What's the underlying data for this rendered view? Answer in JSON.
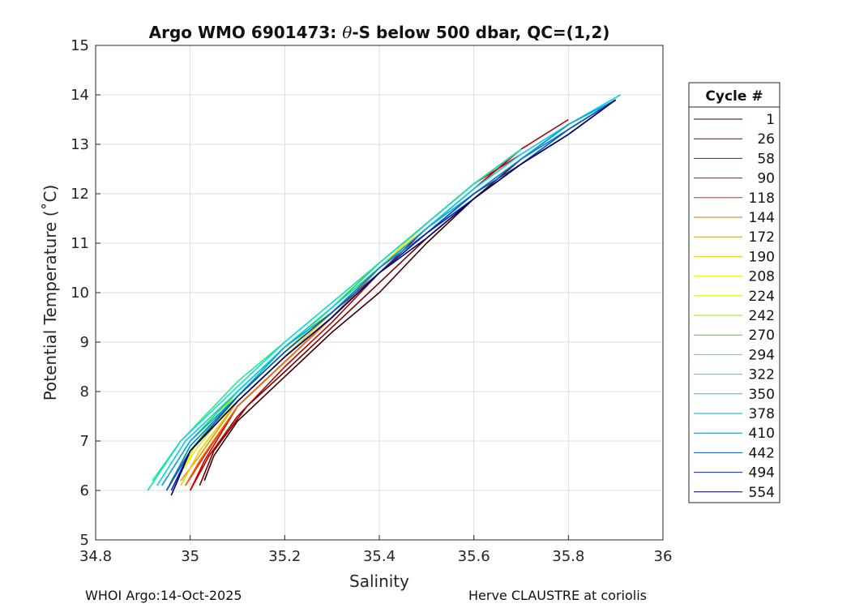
{
  "chart_data": {
    "type": "line",
    "title": "Argo WMO 6901473: θ-S below 500 dbar,  QC=(1,2)",
    "title_parts": [
      "Argo WMO 6901473: ",
      "θ",
      "-S below 500 dbar,  QC=(1,2)"
    ],
    "xlabel": "Salinity",
    "ylabel": "Potential Temperature (˚C)",
    "xlim": [
      34.8,
      36
    ],
    "ylim": [
      5,
      15
    ],
    "xticks": [
      "34.8",
      "35",
      "35.2",
      "35.4",
      "35.6",
      "35.8",
      "36"
    ],
    "yticks": [
      "5",
      "6",
      "7",
      "8",
      "9",
      "10",
      "11",
      "12",
      "13",
      "14",
      "15"
    ],
    "grid": true,
    "legend_position": "right",
    "legend_title": "Cycle #",
    "series": [
      {
        "name": "1",
        "color": "#3d0000",
        "x": [
          35.03,
          35.05,
          35.1,
          35.2,
          35.3,
          35.4,
          35.5,
          35.6,
          35.7,
          35.8
        ],
        "y": [
          6.2,
          6.7,
          7.4,
          8.3,
          9.2,
          10.0,
          11.0,
          11.9,
          12.7,
          13.4
        ]
      },
      {
        "name": "26",
        "color": "#7a0000",
        "x": [
          35.02,
          35.05,
          35.12,
          35.2,
          35.3,
          35.4,
          35.5,
          35.6,
          35.7,
          35.8
        ],
        "y": [
          6.1,
          6.8,
          7.7,
          8.4,
          9.3,
          10.2,
          11.1,
          11.9,
          12.7,
          13.4
        ]
      },
      {
        "name": "58",
        "color": "#b20000",
        "x": [
          35.0,
          35.04,
          35.1,
          35.2,
          35.3,
          35.4,
          35.5,
          35.6,
          35.7,
          35.8
        ],
        "y": [
          6.0,
          6.7,
          7.5,
          8.5,
          9.4,
          10.4,
          11.3,
          12.1,
          12.9,
          13.5
        ]
      },
      {
        "name": "90",
        "color": "#d60000",
        "x": [
          35.0,
          35.03,
          35.1,
          35.2,
          35.3,
          35.4,
          35.5,
          35.6,
          35.7
        ],
        "y": [
          6.0,
          6.6,
          7.7,
          8.6,
          9.5,
          10.5,
          11.4,
          12.2,
          12.8
        ]
      },
      {
        "name": "118",
        "color": "#ee2200",
        "x": [
          34.99,
          35.03,
          35.1,
          35.2,
          35.3,
          35.4,
          35.5,
          35.6,
          35.7
        ],
        "y": [
          6.1,
          6.7,
          7.7,
          8.6,
          9.5,
          10.5,
          11.4,
          12.2,
          12.9
        ]
      },
      {
        "name": "144",
        "color": "#ee6600",
        "x": [
          34.99,
          35.02,
          35.1,
          35.2,
          35.3,
          35.4,
          35.5,
          35.6,
          35.7
        ],
        "y": [
          6.1,
          6.6,
          7.7,
          8.6,
          9.5,
          10.5,
          11.4,
          12.2,
          12.9
        ]
      },
      {
        "name": "172",
        "color": "#dd9900",
        "x": [
          34.98,
          35.02,
          35.1,
          35.2,
          35.3,
          35.4,
          35.5,
          35.6,
          35.7
        ],
        "y": [
          6.2,
          6.7,
          7.8,
          8.7,
          9.6,
          10.5,
          11.4,
          12.2,
          12.9
        ]
      },
      {
        "name": "190",
        "color": "#eecc00",
        "x": [
          34.98,
          35.02,
          35.1,
          35.2,
          35.3,
          35.4,
          35.5,
          35.6,
          35.7
        ],
        "y": [
          6.1,
          6.8,
          7.8,
          8.7,
          9.6,
          10.5,
          11.4,
          12.2,
          12.9
        ]
      },
      {
        "name": "208",
        "color": "#eeee00",
        "x": [
          34.97,
          35.01,
          35.1,
          35.2,
          35.3,
          35.4,
          35.5,
          35.6,
          35.7
        ],
        "y": [
          6.2,
          6.8,
          7.9,
          8.8,
          9.6,
          10.5,
          11.4,
          12.2,
          12.9
        ]
      },
      {
        "name": "224",
        "color": "#ccee00",
        "x": [
          34.97,
          35.01,
          35.1,
          35.2,
          35.3,
          35.4,
          35.5,
          35.6,
          35.7
        ],
        "y": [
          6.2,
          6.9,
          7.9,
          8.8,
          9.7,
          10.6,
          11.4,
          12.2,
          12.9
        ]
      },
      {
        "name": "242",
        "color": "#88ee00",
        "x": [
          34.96,
          35.0,
          35.1,
          35.2,
          35.3,
          35.4,
          35.5,
          35.6,
          35.7
        ],
        "y": [
          6.2,
          6.8,
          8.0,
          8.9,
          9.7,
          10.6,
          11.4,
          12.2,
          12.9
        ]
      },
      {
        "name": "270",
        "color": "#33dd22",
        "x": [
          34.94,
          35.0,
          35.1,
          35.2,
          35.3,
          35.4,
          35.5,
          35.6,
          35.7
        ],
        "y": [
          6.1,
          7.0,
          8.0,
          8.9,
          9.7,
          10.6,
          11.4,
          12.2,
          12.9
        ]
      },
      {
        "name": "294",
        "color": "#22ee88",
        "x": [
          34.92,
          34.98,
          35.1,
          35.2,
          35.3,
          35.4,
          35.5,
          35.6,
          35.7
        ],
        "y": [
          6.2,
          7.0,
          8.2,
          9.0,
          9.8,
          10.6,
          11.4,
          12.2,
          12.9
        ]
      },
      {
        "name": "322",
        "color": "#11ddcc",
        "x": [
          34.91,
          34.98,
          35.1,
          35.2,
          35.3,
          35.4,
          35.5,
          35.6,
          35.7
        ],
        "y": [
          6.0,
          7.0,
          8.1,
          9.0,
          9.8,
          10.6,
          11.4,
          12.2,
          12.9
        ]
      },
      {
        "name": "350",
        "color": "#00ccee",
        "x": [
          34.93,
          34.99,
          35.1,
          35.2,
          35.3,
          35.4,
          35.5,
          35.6,
          35.7,
          35.8,
          35.91
        ],
        "y": [
          6.1,
          7.0,
          8.0,
          8.9,
          9.7,
          10.5,
          11.3,
          12.1,
          12.8,
          13.4,
          14.0
        ]
      },
      {
        "name": "378",
        "color": "#00aadd",
        "x": [
          34.94,
          35.0,
          35.1,
          35.2,
          35.3,
          35.4,
          35.5,
          35.6,
          35.7,
          35.8,
          35.9
        ],
        "y": [
          6.1,
          7.0,
          7.9,
          8.9,
          9.6,
          10.5,
          11.3,
          12.0,
          12.7,
          13.4,
          13.9
        ]
      },
      {
        "name": "410",
        "color": "#0088cc",
        "x": [
          34.95,
          35.0,
          35.1,
          35.2,
          35.3,
          35.4,
          35.5,
          35.6,
          35.7,
          35.8,
          35.9
        ],
        "y": [
          6.0,
          6.9,
          7.9,
          8.8,
          9.6,
          10.5,
          11.2,
          12.0,
          12.7,
          13.3,
          13.9
        ]
      },
      {
        "name": "442",
        "color": "#0055bb",
        "x": [
          34.95,
          35.0,
          35.1,
          35.2,
          35.3,
          35.4,
          35.5,
          35.6,
          35.7,
          35.8,
          35.9
        ],
        "y": [
          6.0,
          6.8,
          7.9,
          8.8,
          9.6,
          10.4,
          11.2,
          12.0,
          12.6,
          13.3,
          13.9
        ]
      },
      {
        "name": "494",
        "color": "#0022cc",
        "x": [
          34.96,
          35.0,
          35.1,
          35.2,
          35.3,
          35.4,
          35.5,
          35.6,
          35.7,
          35.8,
          35.9
        ],
        "y": [
          6.0,
          6.8,
          7.8,
          8.7,
          9.5,
          10.4,
          11.2,
          11.9,
          12.6,
          13.2,
          13.9
        ]
      },
      {
        "name": "554",
        "color": "#00005a",
        "x": [
          34.96,
          35.0,
          35.1,
          35.2,
          35.3,
          35.4,
          35.5,
          35.6,
          35.7,
          35.8,
          35.9
        ],
        "y": [
          5.9,
          6.8,
          7.8,
          8.7,
          9.5,
          10.4,
          11.1,
          11.9,
          12.6,
          13.2,
          13.9
        ]
      }
    ]
  },
  "footer": {
    "left": "WHOI Argo:14-Oct-2025",
    "right": "Herve CLAUSTRE at coriolis"
  }
}
